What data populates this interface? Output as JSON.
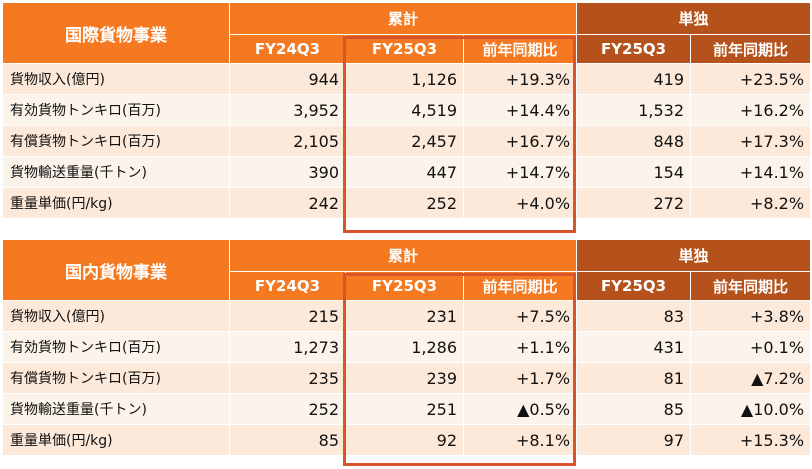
{
  "tables": [
    {
      "title": "国際貨物事業",
      "group_cumulative": "累計",
      "group_standalone": "単独",
      "sub_headers": [
        "FY24Q3",
        "FY25Q3",
        "前年同期比",
        "FY25Q3",
        "前年同期比"
      ],
      "rows": [
        {
          "label": "貨物収入(億円)",
          "values": [
            "944",
            "1,126",
            "+19.3%",
            "419",
            "+23.5%"
          ]
        },
        {
          "label": "有効貨物トンキロ(百万)",
          "values": [
            "3,952",
            "4,519",
            "+14.4%",
            "1,532",
            "+16.2%"
          ]
        },
        {
          "label": "有償貨物トンキロ(百万)",
          "values": [
            "2,105",
            "2,457",
            "+16.7%",
            "848",
            "+17.3%"
          ]
        },
        {
          "label": "貨物輸送重量(千トン)",
          "values": [
            "390",
            "447",
            "+14.7%",
            "154",
            "+14.1%"
          ]
        },
        {
          "label": "重量単価(円/kg)",
          "values": [
            "242",
            "252",
            "+4.0%",
            "272",
            "+8.2%"
          ]
        }
      ]
    },
    {
      "title": "国内貨物事業",
      "group_cumulative": "累計",
      "group_standalone": "単独",
      "sub_headers": [
        "FY24Q3",
        "FY25Q3",
        "前年同期比",
        "FY25Q3",
        "前年同期比"
      ],
      "rows": [
        {
          "label": "貨物収入(億円)",
          "values": [
            "215",
            "231",
            "+7.5%",
            "83",
            "+3.8%"
          ]
        },
        {
          "label": "有効貨物トンキロ(百万)",
          "values": [
            "1,273",
            "1,286",
            "+1.1%",
            "431",
            "+0.1%"
          ]
        },
        {
          "label": "有償貨物トンキロ(百万)",
          "values": [
            "235",
            "239",
            "+1.7%",
            "81",
            "▲7.2%"
          ]
        },
        {
          "label": "貨物輸送重量(千トン)",
          "values": [
            "252",
            "251",
            "▲0.5%",
            "85",
            "▲10.0%"
          ]
        },
        {
          "label": "重量単価(円/kg)",
          "values": [
            "85",
            "92",
            "+8.1%",
            "97",
            "+15.3%"
          ]
        }
      ]
    }
  ],
  "colors": {
    "header_orange": "#f47920",
    "header_brown": "#b5521b",
    "row_odd": "#fde9d9",
    "row_even": "#fcf3ea",
    "highlight_border": "#d9542b"
  }
}
